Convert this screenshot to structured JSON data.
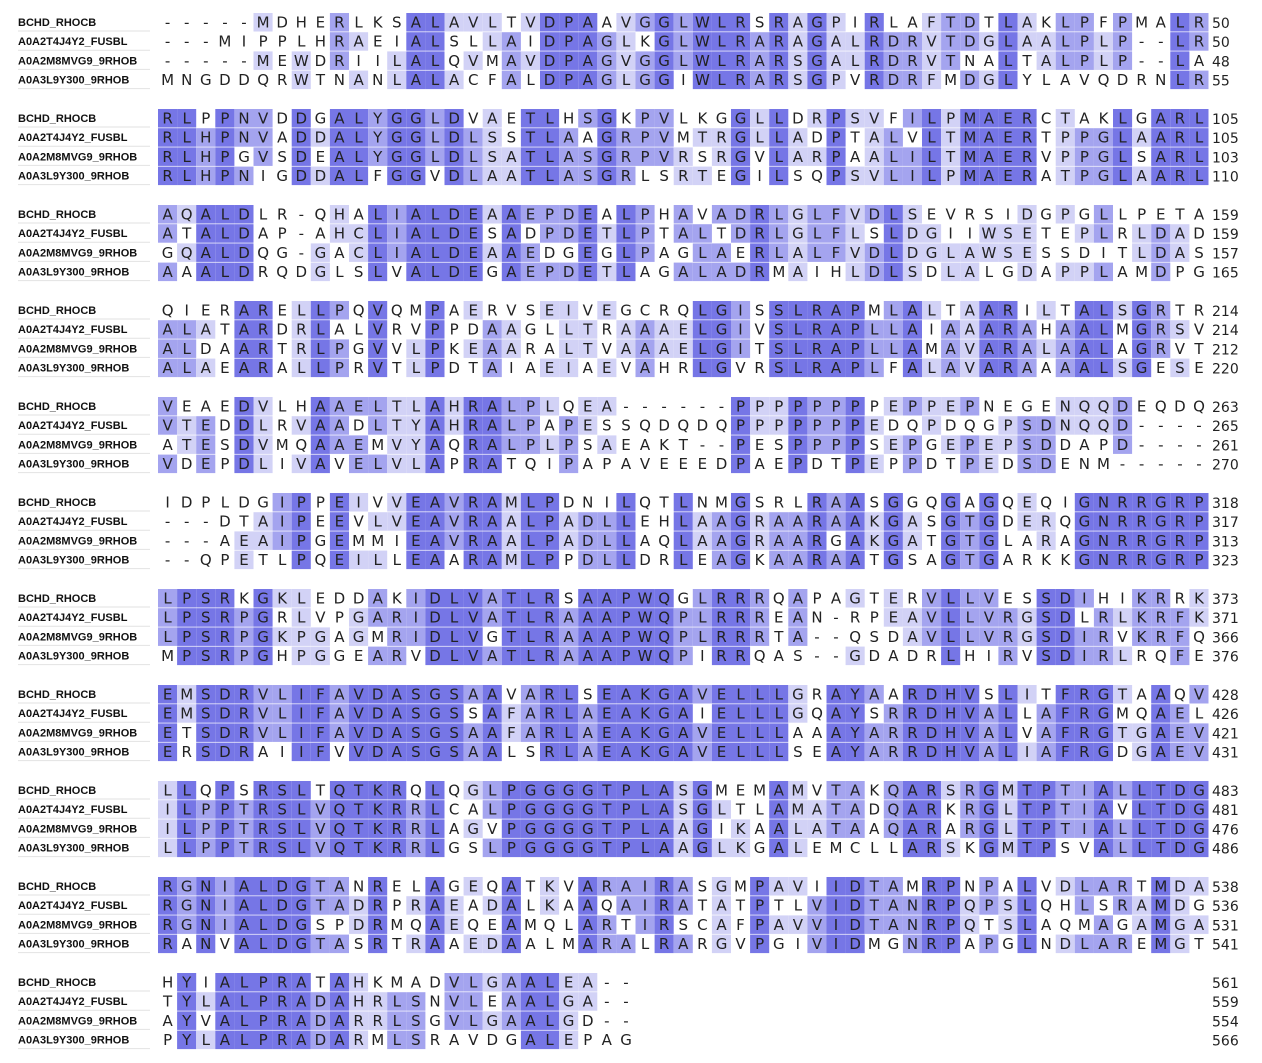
{
  "shading": {
    "full": "#7676e6",
    "high": "#a4a4ef",
    "mid": "#d2d2f6"
  },
  "blocks": [
    {
      "rows": [
        {
          "name": "BCHD_RHOCB",
          "sequence": "-----MDHERLKSALAVLTVDPAAVGGLWLRSRAGPIRLAFTDTLAKLPFPMALR",
          "end": 50
        },
        {
          "name": "A0A2T4J4Y2_FUSBL",
          "sequence": "---MIPPLHRAEIALSLLAIDPAGLKGLWLRARAGALRDRVTDGLAALPLP--LR",
          "end": 50
        },
        {
          "name": "A0A2M8MVG9_9RHOB",
          "sequence": "-----MEWDRIILALQVMAVDPAGVGGLWLRARSGALRDRVTNALTALPLP--LA",
          "end": 48
        },
        {
          "name": "A0A3L9Y300_9RHOB",
          "sequence": "MNGDDQRWTNANLALACFALDPAGLGGIWLRARSGPVRDRFMDGLYLAVQDRNLR",
          "end": 55
        }
      ]
    },
    {
      "rows": [
        {
          "name": "BCHD_RHOCB",
          "sequence": "RLPPNVDDGALYGGLDVAETLHSGKPVLKGGLLDRPSVFILPMAERCTAKLGARL",
          "end": 105
        },
        {
          "name": "A0A2T4J4Y2_FUSBL",
          "sequence": "RLHPNVADDALYGGLDLSSTLAAGRPVMTRGLLADPTALVLTMAERTPPGLAARL",
          "end": 105
        },
        {
          "name": "A0A2M8MVG9_9RHOB",
          "sequence": "RLHPGVSDEALYGGLDLSATLASGRPVRSRGVLARPAALILTMAERVPPGLSARL",
          "end": 103
        },
        {
          "name": "A0A3L9Y300_9RHOB",
          "sequence": "RLHPNIGDDALFGGVDLAATLASGRLSRTEGILSQPSVLILPMAERATPGLAARL",
          "end": 110
        }
      ]
    },
    {
      "rows": [
        {
          "name": "BCHD_RHOCB",
          "sequence": "AQALDLR-QHALIALDEAAEPDEALPHAVADRLGLFVDLSEVRSIDGPGLLPETA",
          "end": 159
        },
        {
          "name": "A0A2T4J4Y2_FUSBL",
          "sequence": "ATALDAP-AHCLIALDESADPDETLPTALTDRLGLFLSLDGIIWSETEPLRLDAD",
          "end": 159
        },
        {
          "name": "A0A2M8MVG9_9RHOB",
          "sequence": "GQALDQG-GACLIALDEAAEDGEGLPAGLAERLALFVDLDGLAWSESSDITLDAS",
          "end": 157
        },
        {
          "name": "A0A3L9Y300_9RHOB",
          "sequence": "AAALDRQDGLSLVALDEGAEPDETLAGALADRMAIHLDLSDLALGDAPPLAMDPG",
          "end": 165
        }
      ]
    },
    {
      "rows": [
        {
          "name": "BCHD_RHOCB",
          "sequence": "QIERARELLPQVQMPAERVSEIVEGCRQLGISSLRAPMLALTAARILTALSGRTR",
          "end": 214
        },
        {
          "name": "A0A2T4J4Y2_FUSBL",
          "sequence": "ALATARDRLALVRVPPDAAGLLTRAAAELGIVSLRAPLLAIAAARAHAALMGRSV",
          "end": 214
        },
        {
          "name": "A0A2M8MVG9_9RHOB",
          "sequence": "ALDAARTRLPGVVLPKEAARALTVAAAELGITSLRAPLLAMAVARALAALAGRVT",
          "end": 212
        },
        {
          "name": "A0A3L9Y300_9RHOB",
          "sequence": "ALAEARALLPRVTLPDTAIAEIAEVAHRLGVRSLRAPLFALAVARAAAALSGESE",
          "end": 220
        }
      ]
    },
    {
      "rows": [
        {
          "name": "BCHD_RHOCB",
          "sequence": "VEAEDVLHAAELTLAHRALPLQEA------PPPPPPPPEPPEPNEGENQQDEQDQ",
          "end": 263
        },
        {
          "name": "A0A2T4J4Y2_FUSBL",
          "sequence": "VTEDDLRVAADLTYAHRALPAPESSQDQDQPPPPPPPEDQPDQGPSDNQQD----",
          "end": 265
        },
        {
          "name": "A0A2M8MVG9_9RHOB",
          "sequence": "ATESDVMQAAEMVYAQRALPLPSAEAKT--PESPPPPSEPGEPEPSDDAPD----",
          "end": 261
        },
        {
          "name": "A0A3L9Y300_9RHOB",
          "sequence": "VDEPDLIVAVELVLAPRATQIPAPAVEEEDPAEPDTPEPPDTPEDSDENM-----",
          "end": 270
        }
      ]
    },
    {
      "rows": [
        {
          "name": "BCHD_RHOCB",
          "sequence": "IDPLDGIPPEIVVEAVRAMLPDNILQTLNMGSRLRAASGGQGAGQEQIGNRRGRP",
          "end": 318
        },
        {
          "name": "A0A2T4J4Y2_FUSBL",
          "sequence": "---DTAIPEEVLVEAVRAALPADLLEHLAAGRAARAAKGASGTGDERQGNRRGRP",
          "end": 317
        },
        {
          "name": "A0A2M8MVG9_9RHOB",
          "sequence": "---AEAIPGEMMIEAVRAALPADLLAQLAAGRAARGAKGATGTGLARAGNRRGRP",
          "end": 313
        },
        {
          "name": "A0A3L9Y300_9RHOB",
          "sequence": "--QPETLPQEILLEAARAMLPPDLLDRLEAGKAARAATGSAGTGARKKGNRRGRP",
          "end": 323
        }
      ]
    },
    {
      "rows": [
        {
          "name": "BCHD_RHOCB",
          "sequence": "LPSRKGKLEDDAKIDLVATLRSAAPWQGLRRRQAPAGTERVLLVESSDIHIKRRK",
          "end": 373
        },
        {
          "name": "A0A2T4J4Y2_FUSBL",
          "sequence": "LPSRPGRLVPGARIDLVATLRAAAPWQPLRRREAN-RPEAVLLVRGSDLRLKRFK",
          "end": 371
        },
        {
          "name": "A0A2M8MVG9_9RHOB",
          "sequence": "LPSRPGKPGAGMRIDLVGTLRAAAPWQPLRRRTA--QSDAVLLVRGSDIRVKRFQ",
          "end": 366
        },
        {
          "name": "A0A3L9Y300_9RHOB",
          "sequence": "MPSRPGHPGGEARVDLVATLRAAAPWQPIRRQAS--GDADRLHIRVSDIRLRQFE",
          "end": 376
        }
      ]
    },
    {
      "rows": [
        {
          "name": "BCHD_RHOCB",
          "sequence": "EMSDRVLIFAVDASGSAAVARLSEAKGAVELLLGRAYAARDHVSLITFRGTAAQV",
          "end": 428
        },
        {
          "name": "A0A2T4J4Y2_FUSBL",
          "sequence": "EMSDRVLIFAVDASGSSAFARLAEAKGAIELLLGQAYSRRDHVALLAFRGMQAEL",
          "end": 426
        },
        {
          "name": "A0A2M8MVG9_9RHOB",
          "sequence": "ETSDRVLIFAVDASGSAAFARLAEAKGAVELLLAAAYARRDHVALVAFRGTGAEV",
          "end": 421
        },
        {
          "name": "A0A3L9Y300_9RHOB",
          "sequence": "ERSDRAIIFVVDASGSAALSRLAEAKGAVELLLSEAYARRDHVALIAFRGDGAEV",
          "end": 431
        }
      ]
    },
    {
      "rows": [
        {
          "name": "BCHD_RHOCB",
          "sequence": "LLQPSRSLTQTKRQLQGLPGGGGTPLASGMEMAMVTAKQARSRGMTPTIALLTDG",
          "end": 483
        },
        {
          "name": "A0A2T4J4Y2_FUSBL",
          "sequence": "ILPPTRSLVQTKRRLCALPGGGGTPLASGLTLAMATADQARKRGLTPTIAVLTDG",
          "end": 481
        },
        {
          "name": "A0A2M8MVG9_9RHOB",
          "sequence": "ILPPTRSLVQTKRRLAGVPGGGGTPLAAGIKAALATAAQARARGLTPTIALLTDG",
          "end": 476
        },
        {
          "name": "A0A3L9Y300_9RHOB",
          "sequence": "LLPPTRSLVQTKRRLGSLPGGGGTPLAAGLKGALEMCLLARSKGMTPSVALLTDG",
          "end": 486
        }
      ]
    },
    {
      "rows": [
        {
          "name": "BCHD_RHOCB",
          "sequence": "RGNIALDGTANRELAGEQATKVARAIRASGMPAVIIDTAMRPNPALVDLARTMDA",
          "end": 538
        },
        {
          "name": "A0A2T4J4Y2_FUSBL",
          "sequence": "RGNIALDGTADRPRAEADALKAAQAIRATATPTLVIDTANRPQPSLQHLSRAMDG",
          "end": 536
        },
        {
          "name": "A0A2M8MVG9_9RHOB",
          "sequence": "RGNIALDGSPDRMQAEQEAMQLARTIRSCAFPAVVIDTANRPQTSLAQMAGAMGA",
          "end": 531
        },
        {
          "name": "A0A3L9Y300_9RHOB",
          "sequence": "RANVALDGTASRTRAAEDAALMARALRARGVPGIVIDMGNRPAPGLNDLAREMGT",
          "end": 541
        }
      ]
    },
    {
      "rows": [
        {
          "name": "BCHD_RHOCB",
          "sequence": "HYIALPRATAHKMADVLGAALEA--",
          "end": 561
        },
        {
          "name": "A0A2T4J4Y2_FUSBL",
          "sequence": "TYLALPRADAHRLSNVLEAALGA--",
          "end": 559
        },
        {
          "name": "A0A2M8MVG9_9RHOB",
          "sequence": "AYVALPRADARRLSGVLGAALGD--",
          "end": 554
        },
        {
          "name": "A0A3L9Y300_9RHOB",
          "sequence": "PYLALPRADARMLSRAVDGALEPAG",
          "end": 566
        }
      ]
    }
  ]
}
